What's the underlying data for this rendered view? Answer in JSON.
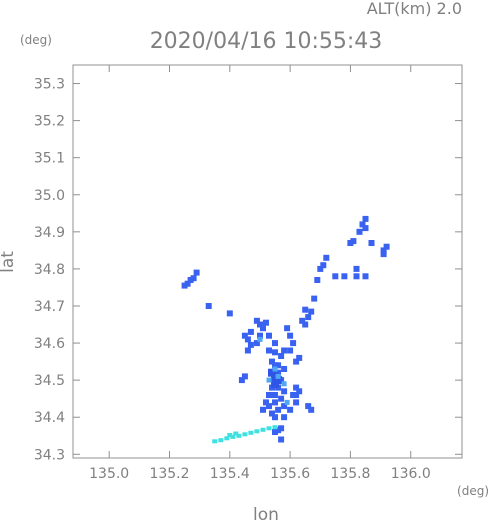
{
  "header": {
    "altitude_label": "ALT(km) 2.0",
    "timestamp": "2020/04/16 10:55:43"
  },
  "axes": {
    "y_unit": "(deg)",
    "x_unit": "(deg)",
    "xlabel": "lon",
    "ylabel": "lat"
  },
  "chart_data": {
    "type": "scatter",
    "title": "2020/04/16 10:55:43",
    "subtitle": "ALT(km) 2.0",
    "xlabel": "lon",
    "ylabel": "lat",
    "xlim": [
      134.88,
      136.17
    ],
    "ylim": [
      34.29,
      35.35
    ],
    "x_ticks": [
      "135.0",
      "135.2",
      "135.4",
      "135.6",
      "135.8",
      "136.0"
    ],
    "y_ticks": [
      "34.3",
      "34.4",
      "34.5",
      "34.6",
      "34.7",
      "34.8",
      "34.9",
      "35.0",
      "35.1",
      "35.2",
      "35.3"
    ],
    "grid": false,
    "colors": {
      "echo_main": "#3a62f0",
      "echo_strong": "#2f55e6",
      "echo_light": "#4fa8f5",
      "echo_cyan": "#3fe0e0",
      "axis": "#909090",
      "text": "#808080"
    },
    "echo_points": [
      [
        135.27,
        34.77
      ],
      [
        135.26,
        34.76
      ],
      [
        135.25,
        34.755
      ],
      [
        135.29,
        34.79
      ],
      [
        135.28,
        34.775
      ],
      [
        135.33,
        34.7
      ],
      [
        135.4,
        34.68
      ],
      [
        135.47,
        34.63
      ],
      [
        135.46,
        34.61
      ],
      [
        135.47,
        34.595
      ],
      [
        135.46,
        34.58
      ],
      [
        135.45,
        34.62
      ],
      [
        135.45,
        34.51
      ],
      [
        135.44,
        34.5
      ],
      [
        135.49,
        34.66
      ],
      [
        135.5,
        34.65
      ],
      [
        135.51,
        34.64
      ],
      [
        135.52,
        34.655
      ],
      [
        135.5,
        34.62
      ],
      [
        135.49,
        34.6
      ],
      [
        135.53,
        34.62
      ],
      [
        135.55,
        34.6
      ],
      [
        135.53,
        34.58
      ],
      [
        135.55,
        34.575
      ],
      [
        135.57,
        34.565
      ],
      [
        135.58,
        34.58
      ],
      [
        135.54,
        34.55
      ],
      [
        135.55,
        34.54
      ],
      [
        135.56,
        34.54
      ],
      [
        135.55,
        34.52
      ],
      [
        135.56,
        34.52
      ],
      [
        135.55,
        34.5
      ],
      [
        135.54,
        34.48
      ],
      [
        135.56,
        34.48
      ],
      [
        135.58,
        34.53
      ],
      [
        135.57,
        34.5
      ],
      [
        135.58,
        34.47
      ],
      [
        135.53,
        34.46
      ],
      [
        135.55,
        34.46
      ],
      [
        135.57,
        34.45
      ],
      [
        135.55,
        34.44
      ],
      [
        135.53,
        34.43
      ],
      [
        135.58,
        34.43
      ],
      [
        135.56,
        34.42
      ],
      [
        135.52,
        34.44
      ],
      [
        135.51,
        34.42
      ],
      [
        135.54,
        34.41
      ],
      [
        135.55,
        34.4
      ],
      [
        135.58,
        34.4
      ],
      [
        135.6,
        34.42
      ],
      [
        135.62,
        34.44
      ],
      [
        135.62,
        34.46
      ],
      [
        135.63,
        34.47
      ],
      [
        135.62,
        34.48
      ],
      [
        135.61,
        34.46
      ],
      [
        135.59,
        34.64
      ],
      [
        135.6,
        34.62
      ],
      [
        135.61,
        34.6
      ],
      [
        135.6,
        34.58
      ],
      [
        135.62,
        34.55
      ],
      [
        135.63,
        34.56
      ],
      [
        135.64,
        34.66
      ],
      [
        135.65,
        34.65
      ],
      [
        135.66,
        34.67
      ],
      [
        135.65,
        34.69
      ],
      [
        135.67,
        34.685
      ],
      [
        135.66,
        34.43
      ],
      [
        135.67,
        34.42
      ],
      [
        135.57,
        34.37
      ],
      [
        135.56,
        34.365
      ],
      [
        135.55,
        34.36
      ],
      [
        135.57,
        34.34
      ],
      [
        135.68,
        34.72
      ],
      [
        135.69,
        34.77
      ],
      [
        135.7,
        34.8
      ],
      [
        135.71,
        34.81
      ],
      [
        135.72,
        34.83
      ],
      [
        135.75,
        34.78
      ],
      [
        135.78,
        34.78
      ],
      [
        135.82,
        34.78
      ],
      [
        135.85,
        34.78
      ],
      [
        135.82,
        34.8
      ],
      [
        135.8,
        34.87
      ],
      [
        135.81,
        34.875
      ],
      [
        135.83,
        34.9
      ],
      [
        135.84,
        34.92
      ],
      [
        135.85,
        34.935
      ],
      [
        135.85,
        34.91
      ],
      [
        135.87,
        34.87
      ],
      [
        135.91,
        34.85
      ],
      [
        135.92,
        34.86
      ],
      [
        135.91,
        34.84
      ]
    ],
    "echo_strong_points": [
      [
        135.55,
        34.51
      ],
      [
        135.56,
        34.5
      ],
      [
        135.55,
        34.49
      ],
      [
        135.54,
        34.52
      ]
    ],
    "echo_light_points": [
      [
        135.55,
        34.53
      ],
      [
        135.56,
        34.51
      ],
      [
        135.53,
        34.5
      ],
      [
        135.58,
        34.49
      ],
      [
        135.5,
        34.61
      ],
      [
        135.59,
        34.44
      ]
    ],
    "echo_cyan_points": [
      [
        135.35,
        34.335
      ],
      [
        135.37,
        34.338
      ],
      [
        135.39,
        34.343
      ],
      [
        135.41,
        34.347
      ],
      [
        135.43,
        34.35
      ],
      [
        135.45,
        34.354
      ],
      [
        135.47,
        34.358
      ],
      [
        135.49,
        34.362
      ],
      [
        135.51,
        34.366
      ],
      [
        135.53,
        34.37
      ],
      [
        135.55,
        34.373
      ],
      [
        135.4,
        34.352
      ],
      [
        135.42,
        34.356
      ]
    ]
  }
}
